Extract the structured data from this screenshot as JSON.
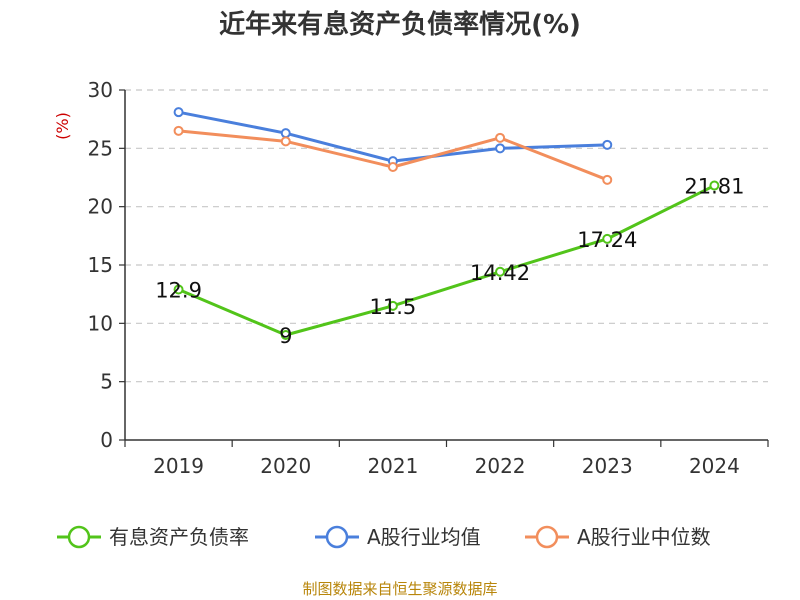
{
  "chart_data": {
    "type": "line",
    "title": "近年来有息资产负债率情况(%)",
    "y_unit": "(%)",
    "categories": [
      "2019",
      "2020",
      "2021",
      "2022",
      "2023",
      "2024"
    ],
    "ylim": [
      0,
      30
    ],
    "yticks": [
      "0",
      "5",
      "10",
      "15",
      "20",
      "25",
      "30"
    ],
    "grid": true,
    "legend_position": "bottom",
    "series": [
      {
        "name": "有息资产负债率",
        "color": "#52c41a",
        "values": [
          12.9,
          9,
          11.5,
          14.42,
          17.24,
          21.81
        ],
        "labels": [
          "12.9",
          "9",
          "11.5",
          "14.42",
          "17.24",
          "21.81"
        ]
      },
      {
        "name": "A股行业均值",
        "color": "#4a7fdc",
        "values": [
          28.1,
          26.3,
          23.9,
          25.0,
          25.3,
          null
        ]
      },
      {
        "name": "A股行业中位数",
        "color": "#f28e5c",
        "values": [
          26.5,
          25.6,
          23.4,
          25.9,
          22.3,
          null
        ]
      }
    ]
  },
  "source": "制图数据来自恒生聚源数据库"
}
